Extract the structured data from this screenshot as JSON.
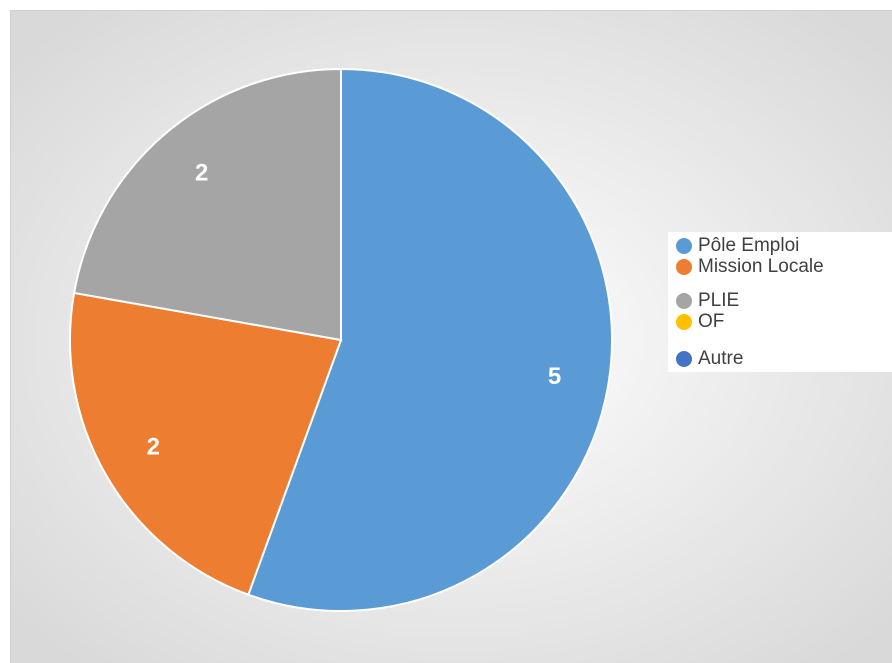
{
  "chart_data": {
    "type": "pie",
    "categories": [
      "Pôle Emploi",
      "Mission Locale",
      "PLIE",
      "OF",
      "Autre"
    ],
    "values": [
      5,
      2,
      2,
      0,
      0
    ],
    "colors": [
      "#5b9bd5",
      "#ed7d31",
      "#a5a5a5",
      "#ffc000",
      "#4472c4"
    ],
    "legend": "right"
  }
}
